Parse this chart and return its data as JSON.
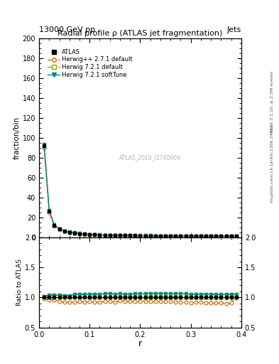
{
  "title": "Radial profile ρ (ATLAS jet fragmentation)",
  "top_label_left": "13000 GeV pp",
  "top_label_right": "Jets",
  "right_label_top": "Rivet 3.1.10, ≥ 2.5M events",
  "right_label_bottom": "mcplots.cern.ch [arXiv:1306.3436]",
  "watermark": "ATLAS_2019_I1740909",
  "ylabel_main": "fraction/bin",
  "ylabel_ratio": "Ratio to ATLAS",
  "xlabel": "r",
  "ylim_main": [
    0,
    200
  ],
  "ylim_ratio": [
    0.5,
    2.0
  ],
  "yticks_main": [
    0,
    20,
    40,
    60,
    80,
    100,
    120,
    140,
    160,
    180,
    200
  ],
  "yticks_ratio": [
    0.5,
    1.0,
    1.5,
    2.0
  ],
  "xlim": [
    0.0,
    0.4
  ],
  "xticks": [
    0.0,
    0.1,
    0.2,
    0.3,
    0.4
  ],
  "r_values": [
    0.01,
    0.02,
    0.03,
    0.04,
    0.05,
    0.06,
    0.07,
    0.08,
    0.09,
    0.1,
    0.11,
    0.12,
    0.13,
    0.14,
    0.15,
    0.16,
    0.17,
    0.18,
    0.19,
    0.2,
    0.21,
    0.22,
    0.23,
    0.24,
    0.25,
    0.26,
    0.27,
    0.28,
    0.29,
    0.3,
    0.31,
    0.32,
    0.33,
    0.34,
    0.35,
    0.36,
    0.37,
    0.38,
    0.39
  ],
  "atlas_y": [
    92.0,
    26.0,
    12.0,
    8.0,
    6.0,
    5.0,
    4.2,
    3.5,
    3.0,
    2.6,
    2.4,
    2.2,
    2.0,
    1.9,
    1.8,
    1.7,
    1.65,
    1.6,
    1.55,
    1.5,
    1.45,
    1.42,
    1.38,
    1.35,
    1.32,
    1.28,
    1.25,
    1.22,
    1.2,
    1.18,
    1.15,
    1.12,
    1.1,
    1.07,
    1.05,
    1.02,
    1.0,
    0.95,
    0.9
  ],
  "atlas_err": [
    2.0,
    0.5,
    0.3,
    0.2,
    0.15,
    0.12,
    0.1,
    0.08,
    0.07,
    0.06,
    0.06,
    0.06,
    0.05,
    0.05,
    0.05,
    0.05,
    0.05,
    0.05,
    0.05,
    0.04,
    0.04,
    0.04,
    0.04,
    0.04,
    0.04,
    0.04,
    0.04,
    0.04,
    0.04,
    0.04,
    0.04,
    0.04,
    0.04,
    0.04,
    0.04,
    0.04,
    0.04,
    0.04,
    0.04
  ],
  "herwig_pp_y": [
    90.0,
    25.0,
    11.5,
    7.5,
    5.5,
    4.6,
    3.85,
    3.25,
    2.78,
    2.42,
    2.22,
    2.02,
    1.87,
    1.77,
    1.67,
    1.6,
    1.55,
    1.5,
    1.45,
    1.4,
    1.36,
    1.33,
    1.29,
    1.26,
    1.23,
    1.19,
    1.16,
    1.13,
    1.11,
    1.08,
    1.06,
    1.03,
    1.0,
    0.98,
    0.95,
    0.93,
    0.9,
    0.86,
    0.9
  ],
  "herwig721_default_y": [
    93.5,
    27.0,
    12.5,
    8.3,
    6.2,
    5.15,
    4.4,
    3.7,
    3.15,
    2.75,
    2.52,
    2.32,
    2.12,
    2.02,
    1.9,
    1.8,
    1.74,
    1.69,
    1.64,
    1.59,
    1.54,
    1.51,
    1.47,
    1.44,
    1.4,
    1.36,
    1.33,
    1.3,
    1.27,
    1.24,
    1.21,
    1.18,
    1.16,
    1.13,
    1.1,
    1.07,
    1.05,
    1.0,
    0.95
  ],
  "herwig721_soft_y": [
    93.5,
    27.0,
    12.5,
    8.3,
    6.2,
    5.15,
    4.4,
    3.7,
    3.15,
    2.75,
    2.52,
    2.32,
    2.12,
    2.02,
    1.9,
    1.8,
    1.74,
    1.69,
    1.64,
    1.59,
    1.54,
    1.51,
    1.47,
    1.44,
    1.4,
    1.36,
    1.33,
    1.3,
    1.27,
    1.24,
    1.21,
    1.18,
    1.16,
    1.13,
    1.1,
    1.07,
    1.05,
    1.0,
    0.95
  ],
  "atlas_color": "#000000",
  "herwig_pp_color": "#cc6600",
  "herwig721_default_color": "#88aa00",
  "herwig721_soft_color": "#008888",
  "atlas_band_color": "#ddee99",
  "legend_entries": [
    "ATLAS",
    "Herwig++ 2.7.1 default",
    "Herwig 7.2.1 default",
    "Herwig 7.2.1 softTune"
  ]
}
